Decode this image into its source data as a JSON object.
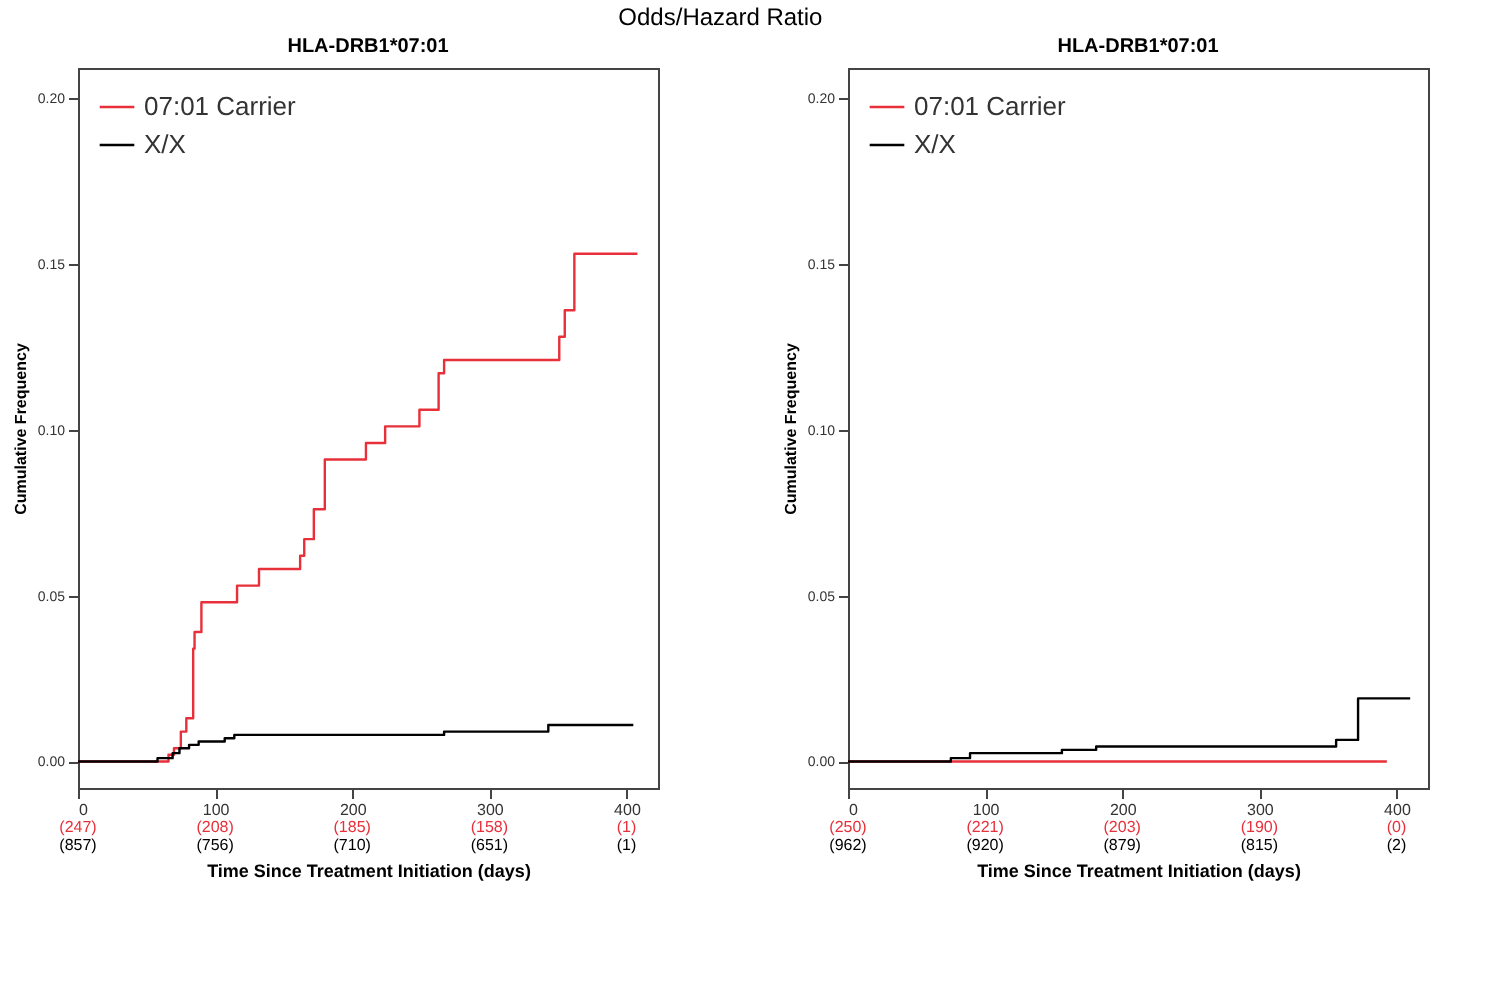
{
  "chart_data": [
    {
      "type": "step",
      "title": "HLA-DRB1*07:01",
      "xlabel": "Time Since Treatment Initiation (days)",
      "ylabel": "Cumulative Frequency",
      "series": [
        {
          "name": "07:01 Carrier",
          "color": "#e8303a",
          "x": [
            0,
            66,
            70,
            75,
            79,
            84,
            85,
            90,
            116,
            132,
            162,
            165,
            172,
            180,
            210,
            224,
            249,
            263,
            267,
            351,
            355,
            362,
            408
          ],
          "values": [
            0,
            0.002,
            0.004,
            0.009,
            0.013,
            0.034,
            0.039,
            0.048,
            0.053,
            0.058,
            0.062,
            0.067,
            0.076,
            0.091,
            0.096,
            0.101,
            0.106,
            0.117,
            0.121,
            0.128,
            0.136,
            0.153,
            0.153
          ]
        },
        {
          "name": "X/X",
          "color": "#000000",
          "x": [
            0,
            58,
            69,
            74,
            81,
            88,
            107,
            114,
            267,
            343,
            405
          ],
          "values": [
            0,
            0.001,
            0.0025,
            0.004,
            0.005,
            0.006,
            0.007,
            0.008,
            0.009,
            0.011,
            0.011
          ]
        }
      ],
      "xlim": [
        0,
        423
      ],
      "xticks": [
        0,
        100,
        200,
        300,
        400
      ],
      "ylim": [
        -0.008,
        0.209
      ],
      "yticks": [
        {
          "value": 0,
          "label": "0.00"
        },
        {
          "value": 0.05,
          "label": "0.05"
        },
        {
          "value": 0.1,
          "label": "0.10"
        },
        {
          "value": 0.15,
          "label": "0.15"
        },
        {
          "value": 0.2,
          "label": "0.20"
        }
      ],
      "legend": "top left",
      "annotations": [
        "Odds/Hazard Ratio",
        "(247)",
        "(208)",
        "(185)",
        "(158)",
        "(1)",
        "(857)",
        "(756)",
        "(710)",
        "(651)",
        "(1)"
      ]
    },
    {
      "type": "step",
      "title": "HLA-DRB1*07:01",
      "xlabel": "Time Since Treatment Initiation (days)",
      "ylabel": "Cumulative Frequency",
      "series": [
        {
          "name": "07:01 Carrier",
          "color": "#e8303a",
          "x": [
            0,
            393
          ],
          "values": [
            0,
            0
          ]
        },
        {
          "name": "X/X",
          "color": "#000000",
          "x": [
            0,
            75,
            89,
            156,
            181,
            356,
            372,
            410
          ],
          "values": [
            0,
            0.001,
            0.0025,
            0.0035,
            0.0045,
            0.0065,
            0.019,
            0.019
          ]
        }
      ],
      "xlim": [
        0,
        423
      ],
      "xticks": [
        0,
        100,
        200,
        300,
        400
      ],
      "ylim": [
        -0.008,
        0.209
      ],
      "yticks": [
        {
          "value": 0,
          "label": "0.00"
        },
        {
          "value": 0.05,
          "label": "0.05"
        },
        {
          "value": 0.1,
          "label": "0.10"
        },
        {
          "value": 0.15,
          "label": "0.15"
        },
        {
          "value": 0.2,
          "label": "0.20"
        }
      ],
      "legend": "top left",
      "annotations": [
        "(250)",
        "(221)",
        "(203)",
        "(190)",
        "(0)",
        "(962)",
        "(920)",
        "(879)",
        "(815)",
        "(2)"
      ]
    }
  ]
}
